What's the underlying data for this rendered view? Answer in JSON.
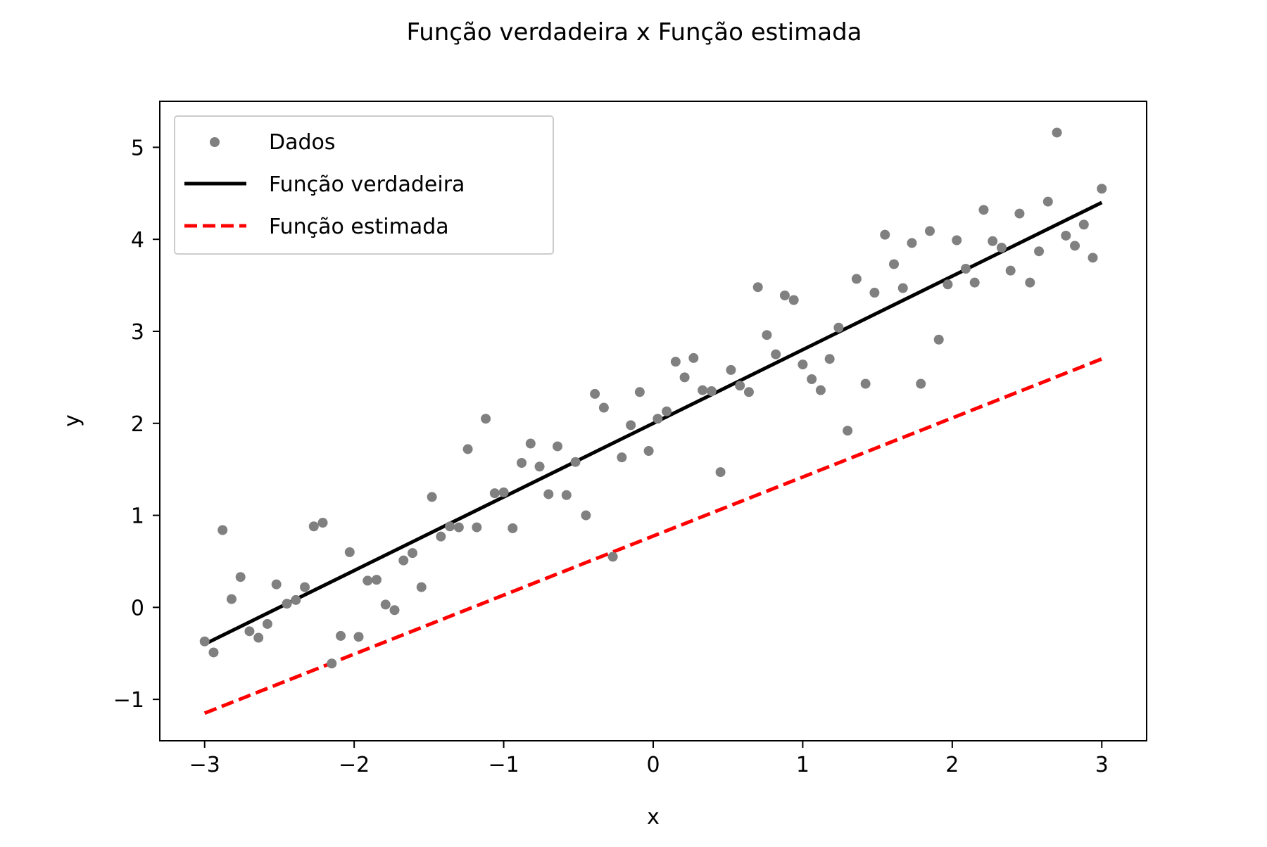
{
  "chart_data": {
    "type": "scatter",
    "title": "Função verdadeira x Função estimada",
    "xlabel": "x",
    "ylabel": "y",
    "xlim": [
      -3.3,
      3.3
    ],
    "ylim": [
      -1.45,
      5.5
    ],
    "xticks": [
      -3,
      -2,
      -1,
      0,
      1,
      2,
      3
    ],
    "xtick_labels": [
      "−3",
      "−2",
      "−1",
      "0",
      "1",
      "2",
      "3"
    ],
    "yticks": [
      -1,
      0,
      1,
      2,
      3,
      4,
      5
    ],
    "ytick_labels": [
      "−1",
      "0",
      "1",
      "2",
      "3",
      "4",
      "5"
    ],
    "grid": false,
    "legend_position": "top-left",
    "series": [
      {
        "name": "Dados",
        "kind": "scatter",
        "color": "#808080",
        "points": [
          [
            -3.0,
            -0.37
          ],
          [
            -2.94,
            -0.49
          ],
          [
            -2.88,
            0.84
          ],
          [
            -2.82,
            0.09
          ],
          [
            -2.76,
            0.33
          ],
          [
            -2.7,
            -0.26
          ],
          [
            -2.64,
            -0.33
          ],
          [
            -2.58,
            -0.18
          ],
          [
            -2.52,
            0.25
          ],
          [
            -2.45,
            0.04
          ],
          [
            -2.39,
            0.08
          ],
          [
            -2.33,
            0.22
          ],
          [
            -2.27,
            0.88
          ],
          [
            -2.21,
            0.92
          ],
          [
            -2.15,
            -0.61
          ],
          [
            -2.09,
            -0.31
          ],
          [
            -2.03,
            0.6
          ],
          [
            -1.97,
            -0.32
          ],
          [
            -1.91,
            0.29
          ],
          [
            -1.85,
            0.3
          ],
          [
            -1.79,
            0.03
          ],
          [
            -1.73,
            -0.03
          ],
          [
            -1.67,
            0.51
          ],
          [
            -1.61,
            0.59
          ],
          [
            -1.55,
            0.22
          ],
          [
            -1.48,
            1.2
          ],
          [
            -1.42,
            0.77
          ],
          [
            -1.36,
            0.88
          ],
          [
            -1.3,
            0.87
          ],
          [
            -1.24,
            1.72
          ],
          [
            -1.18,
            0.87
          ],
          [
            -1.12,
            2.05
          ],
          [
            -1.06,
            1.24
          ],
          [
            -1.0,
            1.25
          ],
          [
            -0.94,
            0.86
          ],
          [
            -0.88,
            1.57
          ],
          [
            -0.82,
            1.78
          ],
          [
            -0.76,
            1.53
          ],
          [
            -0.7,
            1.23
          ],
          [
            -0.64,
            1.75
          ],
          [
            -0.58,
            1.22
          ],
          [
            -0.52,
            1.58
          ],
          [
            -0.45,
            1.0
          ],
          [
            -0.39,
            2.32
          ],
          [
            -0.33,
            2.17
          ],
          [
            -0.27,
            0.55
          ],
          [
            -0.21,
            1.63
          ],
          [
            -0.15,
            1.98
          ],
          [
            -0.09,
            2.34
          ],
          [
            -0.03,
            1.7
          ],
          [
            0.03,
            2.05
          ],
          [
            0.09,
            2.13
          ],
          [
            0.15,
            2.67
          ],
          [
            0.21,
            2.5
          ],
          [
            0.27,
            2.71
          ],
          [
            0.33,
            2.36
          ],
          [
            0.39,
            2.35
          ],
          [
            0.45,
            1.47
          ],
          [
            0.52,
            2.58
          ],
          [
            0.58,
            2.41
          ],
          [
            0.64,
            2.34
          ],
          [
            0.7,
            3.48
          ],
          [
            0.76,
            2.96
          ],
          [
            0.82,
            2.75
          ],
          [
            0.88,
            3.39
          ],
          [
            0.94,
            3.34
          ],
          [
            1.0,
            2.64
          ],
          [
            1.06,
            2.48
          ],
          [
            1.12,
            2.36
          ],
          [
            1.18,
            2.7
          ],
          [
            1.24,
            3.04
          ],
          [
            1.3,
            1.92
          ],
          [
            1.36,
            3.57
          ],
          [
            1.42,
            2.43
          ],
          [
            1.48,
            3.42
          ],
          [
            1.55,
            4.05
          ],
          [
            1.61,
            3.73
          ],
          [
            1.67,
            3.47
          ],
          [
            1.73,
            3.96
          ],
          [
            1.79,
            2.43
          ],
          [
            1.85,
            4.09
          ],
          [
            1.91,
            2.91
          ],
          [
            1.97,
            3.51
          ],
          [
            2.03,
            3.99
          ],
          [
            2.09,
            3.68
          ],
          [
            2.15,
            3.53
          ],
          [
            2.21,
            4.32
          ],
          [
            2.27,
            3.98
          ],
          [
            2.33,
            3.91
          ],
          [
            2.39,
            3.66
          ],
          [
            2.45,
            4.28
          ],
          [
            2.52,
            3.53
          ],
          [
            2.58,
            3.87
          ],
          [
            2.64,
            4.41
          ],
          [
            2.7,
            5.16
          ],
          [
            2.76,
            4.04
          ],
          [
            2.82,
            3.93
          ],
          [
            2.88,
            4.16
          ],
          [
            2.94,
            3.8
          ],
          [
            3.0,
            4.55
          ]
        ]
      },
      {
        "name": "Função verdadeira",
        "kind": "line",
        "color": "#000000",
        "style": "solid",
        "x": [
          -3,
          3
        ],
        "y": [
          -0.4,
          4.4
        ]
      },
      {
        "name": "Função estimada",
        "kind": "line",
        "color": "#ff0000",
        "style": "dashed",
        "x": [
          -3,
          3
        ],
        "y": [
          -1.15,
          2.7
        ]
      }
    ]
  }
}
